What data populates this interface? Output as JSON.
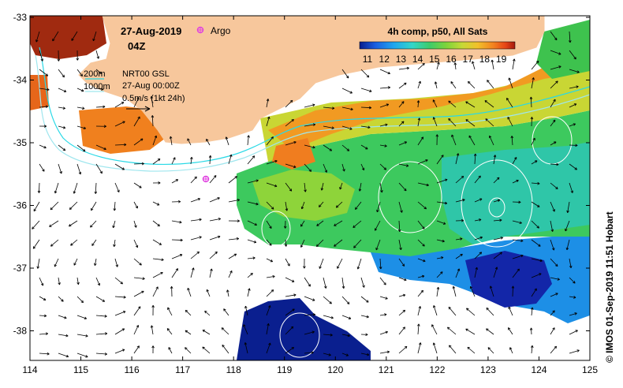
{
  "map": {
    "date": "27-Aug-2019",
    "time": "04Z",
    "argo_label": "Argo",
    "product": "4h comp, p50, All Sats",
    "legend_lines": [
      "200m",
      "1000m"
    ],
    "info_lines": [
      "NRT00 GSL",
      "27-Aug 00:00Z",
      "0.5m/s (1kt 24h)"
    ],
    "credit": "© IMOS 01-Sep-2019 11:51 Hobart",
    "colors": {
      "land": "#f7c79c",
      "contour_200m": "#29d9e6",
      "contour_1000m": "#9fe6ee",
      "argo_marker": "#e040e0",
      "sla_contour": "#ffffff"
    },
    "colorbar": {
      "ticks": [
        "11",
        "12",
        "13",
        "14",
        "15",
        "16",
        "17",
        "18",
        "19"
      ],
      "colors": [
        "#081d8c",
        "#1a5de0",
        "#1fa6f0",
        "#33d6c8",
        "#3ccc6a",
        "#7fd43a",
        "#c6d936",
        "#f2c02a",
        "#f3821f",
        "#e64416",
        "#a31a0e",
        "#6e0e0a"
      ]
    },
    "axes": {
      "x_ticks": [
        "114",
        "115",
        "116",
        "117",
        "118",
        "119",
        "120",
        "121",
        "122",
        "123",
        "124",
        "125"
      ],
      "y_ticks": [
        "-33",
        "-34",
        "-35",
        "-36",
        "-37",
        "-38"
      ]
    }
  }
}
